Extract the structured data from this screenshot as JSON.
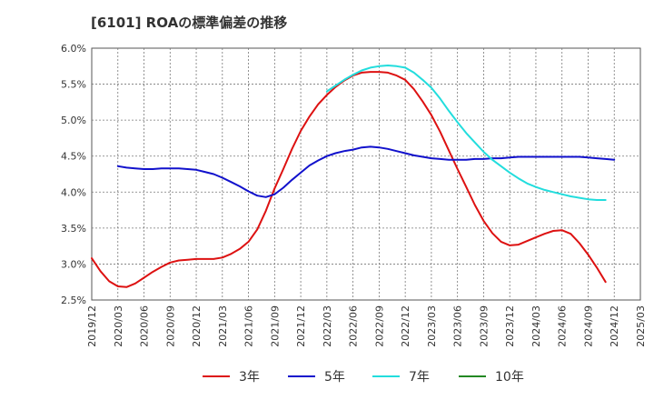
{
  "header": {
    "title": "[6101]  ROAの標準偏差の推移"
  },
  "chart_data": {
    "type": "line",
    "title": "[6101]  ROAの標準偏差の推移",
    "xlabel": "",
    "ylabel": "",
    "x_ticks": [
      "2019/12",
      "2020/03",
      "2020/06",
      "2020/09",
      "2020/12",
      "2021/03",
      "2021/06",
      "2021/09",
      "2021/12",
      "2022/03",
      "2022/06",
      "2022/09",
      "2022/12",
      "2023/03",
      "2023/06",
      "2023/09",
      "2023/12",
      "2024/03",
      "2024/06",
      "2024/09",
      "2024/12",
      "2025/03"
    ],
    "y_ticks": [
      "2.5%",
      "3.0%",
      "3.5%",
      "4.0%",
      "4.5%",
      "5.0%",
      "5.5%",
      "6.0%"
    ],
    "ylim": [
      2.5,
      6.0
    ],
    "grid": true,
    "legend_position": "bottom",
    "series": [
      {
        "name": "3年",
        "color": "#dd1111",
        "points": [
          [
            "2019/12",
            3.08
          ],
          [
            "2020/01",
            2.9
          ],
          [
            "2020/02",
            2.76
          ],
          [
            "2020/03",
            2.69
          ],
          [
            "2020/04",
            2.68
          ],
          [
            "2020/05",
            2.73
          ],
          [
            "2020/06",
            2.81
          ],
          [
            "2020/07",
            2.89
          ],
          [
            "2020/08",
            2.96
          ],
          [
            "2020/09",
            3.02
          ],
          [
            "2020/10",
            3.05
          ],
          [
            "2020/11",
            3.06
          ],
          [
            "2020/12",
            3.07
          ],
          [
            "2021/01",
            3.07
          ],
          [
            "2021/02",
            3.07
          ],
          [
            "2021/03",
            3.09
          ],
          [
            "2021/04",
            3.14
          ],
          [
            "2021/05",
            3.21
          ],
          [
            "2021/06",
            3.31
          ],
          [
            "2021/07",
            3.48
          ],
          [
            "2021/08",
            3.74
          ],
          [
            "2021/09",
            4.05
          ],
          [
            "2021/10",
            4.32
          ],
          [
            "2021/11",
            4.6
          ],
          [
            "2021/12",
            4.85
          ],
          [
            "2022/01",
            5.05
          ],
          [
            "2022/02",
            5.22
          ],
          [
            "2022/03",
            5.35
          ],
          [
            "2022/04",
            5.46
          ],
          [
            "2022/05",
            5.55
          ],
          [
            "2022/06",
            5.62
          ],
          [
            "2022/07",
            5.66
          ],
          [
            "2022/08",
            5.67
          ],
          [
            "2022/09",
            5.67
          ],
          [
            "2022/10",
            5.66
          ],
          [
            "2022/11",
            5.62
          ],
          [
            "2022/12",
            5.56
          ],
          [
            "2023/01",
            5.43
          ],
          [
            "2023/02",
            5.26
          ],
          [
            "2023/03",
            5.07
          ],
          [
            "2023/04",
            4.84
          ],
          [
            "2023/05",
            4.58
          ],
          [
            "2023/06",
            4.32
          ],
          [
            "2023/07",
            4.07
          ],
          [
            "2023/08",
            3.82
          ],
          [
            "2023/09",
            3.6
          ],
          [
            "2023/10",
            3.43
          ],
          [
            "2023/11",
            3.31
          ],
          [
            "2023/12",
            3.26
          ],
          [
            "2024/01",
            3.27
          ],
          [
            "2024/02",
            3.32
          ],
          [
            "2024/03",
            3.37
          ],
          [
            "2024/04",
            3.42
          ],
          [
            "2024/05",
            3.46
          ],
          [
            "2024/06",
            3.47
          ],
          [
            "2024/07",
            3.42
          ],
          [
            "2024/08",
            3.29
          ],
          [
            "2024/09",
            3.13
          ],
          [
            "2024/10",
            2.95
          ],
          [
            "2024/11",
            2.75
          ]
        ]
      },
      {
        "name": "5年",
        "color": "#1111cc",
        "points": [
          [
            "2020/03",
            4.36
          ],
          [
            "2020/04",
            4.34
          ],
          [
            "2020/05",
            4.33
          ],
          [
            "2020/06",
            4.32
          ],
          [
            "2020/07",
            4.32
          ],
          [
            "2020/08",
            4.33
          ],
          [
            "2020/09",
            4.33
          ],
          [
            "2020/10",
            4.33
          ],
          [
            "2020/11",
            4.32
          ],
          [
            "2020/12",
            4.31
          ],
          [
            "2021/01",
            4.28
          ],
          [
            "2021/02",
            4.25
          ],
          [
            "2021/03",
            4.2
          ],
          [
            "2021/04",
            4.14
          ],
          [
            "2021/05",
            4.08
          ],
          [
            "2021/06",
            4.01
          ],
          [
            "2021/07",
            3.95
          ],
          [
            "2021/08",
            3.93
          ],
          [
            "2021/09",
            3.97
          ],
          [
            "2021/10",
            4.06
          ],
          [
            "2021/11",
            4.17
          ],
          [
            "2021/12",
            4.27
          ],
          [
            "2022/01",
            4.37
          ],
          [
            "2022/02",
            4.44
          ],
          [
            "2022/03",
            4.5
          ],
          [
            "2022/04",
            4.54
          ],
          [
            "2022/05",
            4.57
          ],
          [
            "2022/06",
            4.59
          ],
          [
            "2022/07",
            4.62
          ],
          [
            "2022/08",
            4.63
          ],
          [
            "2022/09",
            4.62
          ],
          [
            "2022/10",
            4.6
          ],
          [
            "2022/11",
            4.57
          ],
          [
            "2022/12",
            4.54
          ],
          [
            "2023/01",
            4.51
          ],
          [
            "2023/02",
            4.49
          ],
          [
            "2023/03",
            4.47
          ],
          [
            "2023/04",
            4.46
          ],
          [
            "2023/05",
            4.45
          ],
          [
            "2023/06",
            4.45
          ],
          [
            "2023/07",
            4.45
          ],
          [
            "2023/08",
            4.46
          ],
          [
            "2023/09",
            4.46
          ],
          [
            "2023/10",
            4.47
          ],
          [
            "2023/11",
            4.47
          ],
          [
            "2023/12",
            4.48
          ],
          [
            "2024/01",
            4.49
          ],
          [
            "2024/02",
            4.49
          ],
          [
            "2024/03",
            4.49
          ],
          [
            "2024/04",
            4.49
          ],
          [
            "2024/05",
            4.49
          ],
          [
            "2024/06",
            4.49
          ],
          [
            "2024/07",
            4.49
          ],
          [
            "2024/08",
            4.49
          ],
          [
            "2024/09",
            4.48
          ],
          [
            "2024/10",
            4.47
          ],
          [
            "2024/11",
            4.46
          ],
          [
            "2024/12",
            4.45
          ]
        ]
      },
      {
        "name": "7年",
        "color": "#22dddd",
        "points": [
          [
            "2022/03",
            5.4
          ],
          [
            "2022/04",
            5.48
          ],
          [
            "2022/05",
            5.56
          ],
          [
            "2022/06",
            5.63
          ],
          [
            "2022/07",
            5.69
          ],
          [
            "2022/08",
            5.73
          ],
          [
            "2022/09",
            5.75
          ],
          [
            "2022/10",
            5.76
          ],
          [
            "2022/11",
            5.75
          ],
          [
            "2022/12",
            5.73
          ],
          [
            "2023/01",
            5.66
          ],
          [
            "2023/02",
            5.56
          ],
          [
            "2023/03",
            5.45
          ],
          [
            "2023/04",
            5.3
          ],
          [
            "2023/05",
            5.13
          ],
          [
            "2023/06",
            4.97
          ],
          [
            "2023/07",
            4.82
          ],
          [
            "2023/08",
            4.69
          ],
          [
            "2023/09",
            4.56
          ],
          [
            "2023/10",
            4.45
          ],
          [
            "2023/11",
            4.36
          ],
          [
            "2023/12",
            4.27
          ],
          [
            "2024/01",
            4.19
          ],
          [
            "2024/02",
            4.12
          ],
          [
            "2024/03",
            4.07
          ],
          [
            "2024/04",
            4.03
          ],
          [
            "2024/05",
            4.0
          ],
          [
            "2024/06",
            3.97
          ],
          [
            "2024/07",
            3.94
          ],
          [
            "2024/08",
            3.92
          ],
          [
            "2024/09",
            3.9
          ],
          [
            "2024/10",
            3.89
          ],
          [
            "2024/11",
            3.89
          ]
        ]
      },
      {
        "name": "10年",
        "color": "#228822",
        "points": []
      }
    ]
  }
}
